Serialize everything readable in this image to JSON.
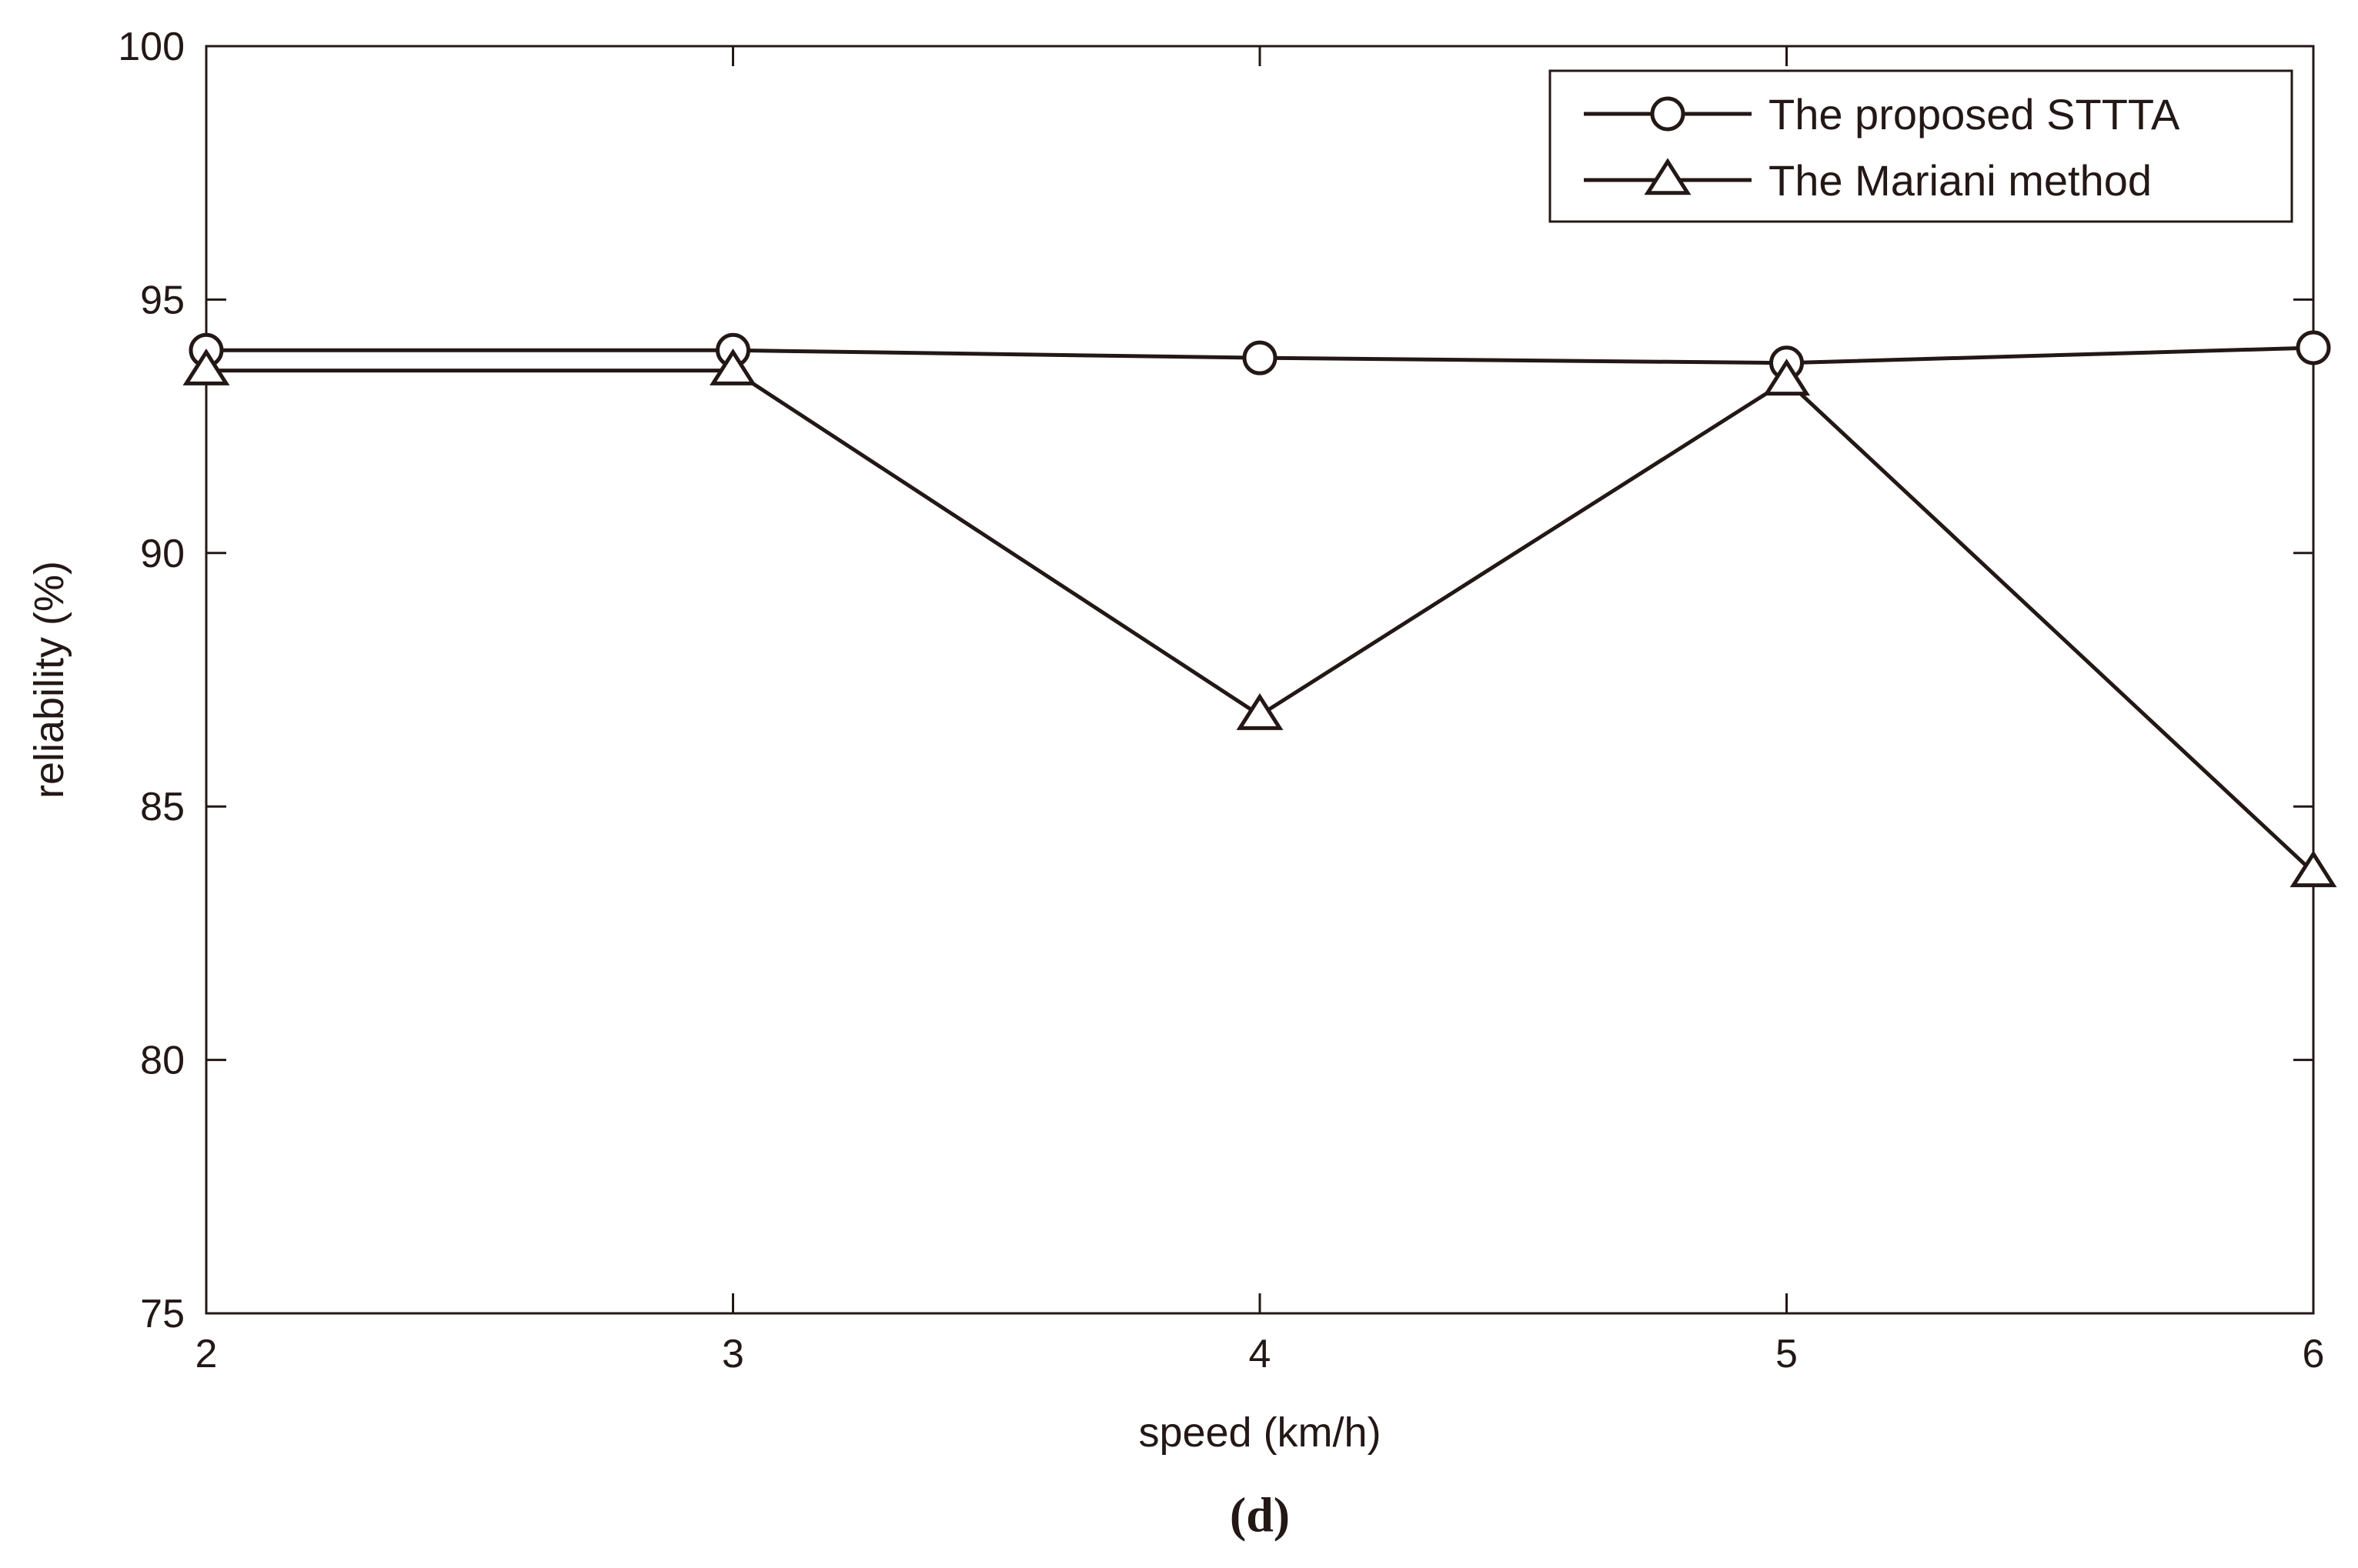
{
  "chart_data": {
    "type": "line",
    "xlabel": "speed (km/h)",
    "ylabel": "reliability (%)",
    "panel_label": "(d)",
    "xlim": [
      2,
      6
    ],
    "ylim": [
      75,
      100
    ],
    "x_ticks": [
      "2",
      "3",
      "4",
      "5",
      "6"
    ],
    "y_ticks": [
      "75",
      "80",
      "85",
      "90",
      "95",
      "100"
    ],
    "x": [
      2,
      3,
      4,
      5,
      6
    ],
    "series": [
      {
        "name": "The proposed STTTA",
        "marker": "circle",
        "values": [
          94.0,
          94.0,
          93.85,
          93.75,
          94.05
        ]
      },
      {
        "name": "The Mariani method",
        "marker": "triangle",
        "values": [
          93.6,
          93.6,
          86.8,
          93.4,
          83.7
        ]
      }
    ],
    "legend": "top-right",
    "grid": false,
    "line_color": "#231815"
  }
}
